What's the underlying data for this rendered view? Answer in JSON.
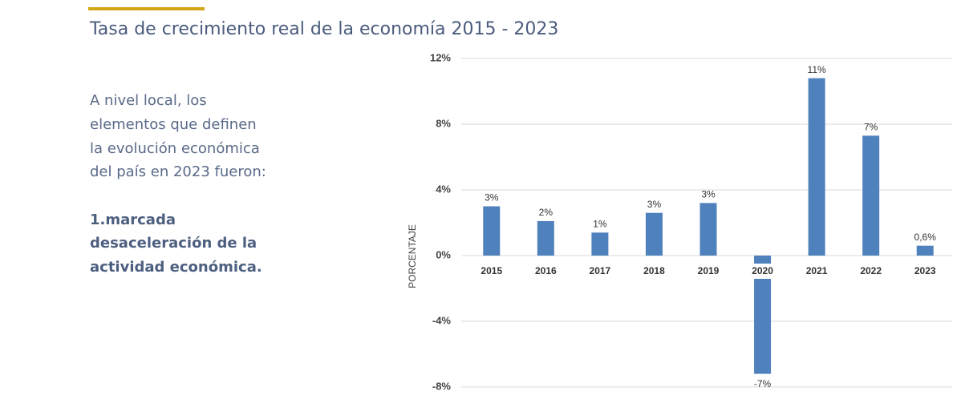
{
  "page": {
    "heading": "Tasa de crecimiento real de la economía 2015 - 2023",
    "body": [
      "A nivel local, los",
      "elementos que definen",
      "la evolución económica",
      "del país en 2023 fueron:"
    ],
    "highlight": [
      "1.marcada",
      "desaceleración de la",
      "actividad económica."
    ]
  },
  "chart_data": {
    "type": "bar",
    "y_label": "PORCENTAJE",
    "categories": [
      "2015",
      "2016",
      "2017",
      "2018",
      "2019",
      "2020",
      "2021",
      "2022",
      "2023"
    ],
    "values": [
      3.0,
      2.1,
      1.4,
      2.6,
      3.2,
      -7.2,
      10.8,
      7.3,
      0.6
    ],
    "value_labels": [
      "3%",
      "2%",
      "1%",
      "3%",
      "3%",
      "-7%",
      "11%",
      "7%",
      "0,6%"
    ],
    "color": "#4f81bd",
    "ylim": [
      -8,
      12
    ],
    "yticks": [
      {
        "value": -8,
        "label": "-8%"
      },
      {
        "value": -4,
        "label": "-4%"
      },
      {
        "value": 0,
        "label": "0%"
      },
      {
        "value": 4,
        "label": "4%"
      },
      {
        "value": 8,
        "label": "8%"
      },
      {
        "value": 12,
        "label": "12%"
      }
    ],
    "grid": true
  }
}
